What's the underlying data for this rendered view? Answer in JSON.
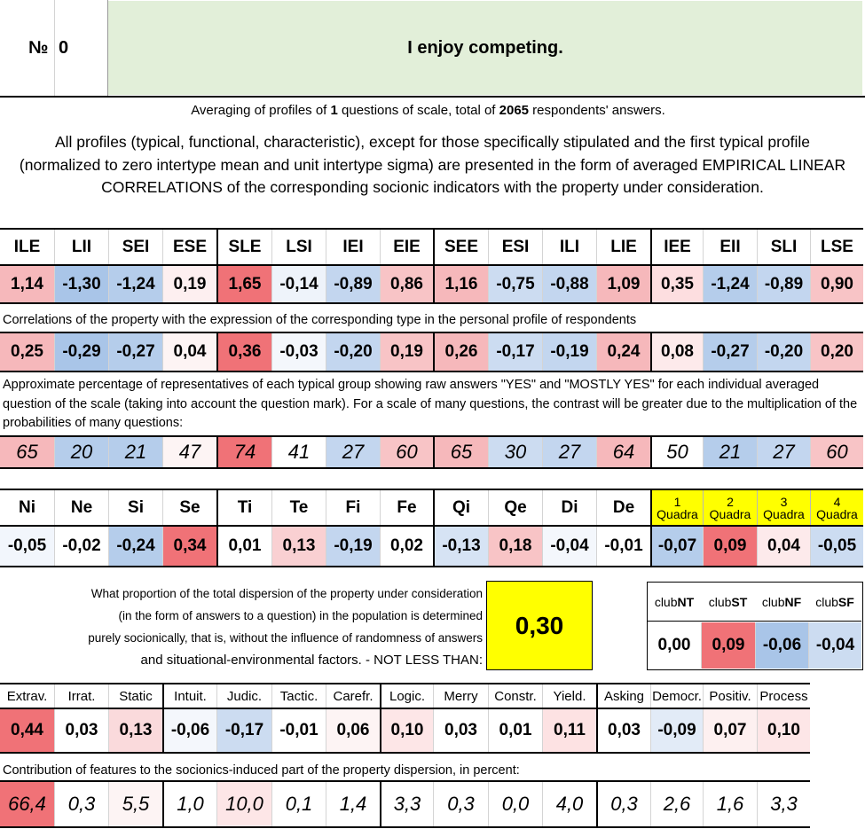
{
  "header": {
    "number_label": "№",
    "number": "0",
    "question": "I enjoy competing."
  },
  "summary": {
    "prefix": "Averaging of profiles of ",
    "questions": "1",
    "middle": " questions of scale, total of ",
    "respondents": "2065",
    "suffix": " respondents' answers.",
    "description": "All profiles (typical, functional, characteristic), except for those specifically stipulated and the first typical profile (normalized to zero intertype mean and unit intertype sigma) are presented in the form of averaged EMPIRICAL LINEAR CORRELATIONS of the corresponding socionic indicators with the property under consideration."
  },
  "types": {
    "labels": [
      "ILE",
      "LII",
      "SEI",
      "ESE",
      "SLE",
      "LSI",
      "IEI",
      "EIE",
      "SEE",
      "ESI",
      "ILI",
      "LIE",
      "IEE",
      "EII",
      "SLI",
      "LSE"
    ],
    "profile": [
      "1,14",
      "-1,30",
      "-1,24",
      "0,19",
      "1,65",
      "-0,14",
      "-0,89",
      "0,86",
      "1,16",
      "-0,75",
      "-0,88",
      "1,09",
      "0,35",
      "-1,24",
      "-0,89",
      "0,90"
    ],
    "profile_colors": [
      "#f6b8bb",
      "#a9c5e8",
      "#b5cdeb",
      "#fdeff0",
      "#f07277",
      "#eef3fa",
      "#c3d6ef",
      "#f8c4c6",
      "#f6b8bb",
      "#ccdcf1",
      "#c3d6ef",
      "#f6b8bb",
      "#fddee0",
      "#b5cdeb",
      "#c3d6ef",
      "#f8c4c6"
    ],
    "corr_caption": "Correlations of the property with the expression of the corresponding type in the personal profile of respondents",
    "correlations": [
      "0,25",
      "-0,29",
      "-0,27",
      "0,04",
      "0,36",
      "-0,03",
      "-0,20",
      "0,19",
      "0,26",
      "-0,17",
      "-0,19",
      "0,24",
      "0,08",
      "-0,27",
      "-0,20",
      "0,20"
    ],
    "corr_colors": [
      "#f6b8bb",
      "#a9c5e8",
      "#b5cdeb",
      "#fdf4f4",
      "#f07277",
      "#f4f7fc",
      "#c3d6ef",
      "#f8c4c6",
      "#f6b8bb",
      "#ccdcf1",
      "#c3d6ef",
      "#f6b8bb",
      "#fdeaeb",
      "#b5cdeb",
      "#c3d6ef",
      "#f8c4c6"
    ],
    "pct_caption": "Approximate percentage of representatives of each typical group showing raw answers \"YES\" and \"MOSTLY YES\" for each individual averaged question of the scale (taking into account the question mark). For a scale of many questions, the contrast will be greater due to the multiplication of the probabilities of many questions:",
    "percentages": [
      "65",
      "20",
      "21",
      "47",
      "74",
      "41",
      "27",
      "60",
      "65",
      "30",
      "27",
      "64",
      "50",
      "21",
      "27",
      "60"
    ],
    "pct_colors": [
      "#f6b8bb",
      "#b5cdeb",
      "#b5cdeb",
      "#fdf4f4",
      "#f07277",
      "#ffffff",
      "#c3d6ef",
      "#f8c4c6",
      "#f6b8bb",
      "#ccdcf1",
      "#c3d6ef",
      "#f6b8bb",
      "#ffffff",
      "#b5cdeb",
      "#c3d6ef",
      "#f8c4c6"
    ]
  },
  "functions": {
    "labels": [
      "Ni",
      "Ne",
      "Si",
      "Se",
      "Ti",
      "Te",
      "Fi",
      "Fe",
      "Qi",
      "Qe",
      "Di",
      "De"
    ],
    "values": [
      "-0,05",
      "-0,02",
      "-0,24",
      "0,34",
      "0,01",
      "0,13",
      "-0,19",
      "0,02",
      "-0,13",
      "0,18",
      "-0,04",
      "-0,01"
    ],
    "colors": [
      "#f2f6fc",
      "#ffffff",
      "#b5cdeb",
      "#f07277",
      "#ffffff",
      "#f9d0d2",
      "#c3d6ef",
      "#ffffff",
      "#d6e3f4",
      "#f8c4c6",
      "#f4f7fc",
      "#ffffff"
    ]
  },
  "quadras": {
    "numbers": [
      "1",
      "2",
      "3",
      "4"
    ],
    "word": "Quadra",
    "values": [
      "-0,07",
      "0,09",
      "0,04",
      "-0,05"
    ],
    "colors": [
      "#b5cdeb",
      "#f07277",
      "#fdeaeb",
      "#ccdcf1"
    ],
    "header_color": "#ffff00"
  },
  "dispersion": {
    "lines": [
      "What proportion of the total dispersion of the property under consideration",
      "(in the form of answers to a question) in the population is determined",
      "purely socionically, that is, without the influence of randomness of answers",
      "and situational-environmental factors. - NOT LESS THAN:"
    ],
    "value": "0,30",
    "box_color": "#ffff00"
  },
  "clubs": {
    "prefix": "club",
    "names": [
      "NT",
      "ST",
      "NF",
      "SF"
    ],
    "values": [
      "0,00",
      "0,09",
      "-0,06",
      "-0,04"
    ],
    "colors": [
      "#ffffff",
      "#f07277",
      "#a9c5e8",
      "#ccdcf1"
    ]
  },
  "features": {
    "labels": [
      "Extrav.",
      "Irrat.",
      "Static",
      "Intuit.",
      "Judic.",
      "Tactic.",
      "Carefr.",
      "Logic.",
      "Merry",
      "Constr.",
      "Yield.",
      "Asking",
      "Democr.",
      "Positiv.",
      "Process"
    ],
    "values": [
      "0,44",
      "0,03",
      "0,13",
      "-0,06",
      "-0,17",
      "-0,01",
      "0,06",
      "0,10",
      "0,03",
      "0,01",
      "0,11",
      "0,03",
      "-0,09",
      "0,07",
      "0,10"
    ],
    "colors": [
      "#f07277",
      "#ffffff",
      "#fadadc",
      "#f4f7fc",
      "#ccdcf1",
      "#ffffff",
      "#fdf4f4",
      "#fde6e7",
      "#ffffff",
      "#ffffff",
      "#fde2e3",
      "#ffffff",
      "#e2ebf7",
      "#fdf0f0",
      "#fde6e7"
    ],
    "contrib_caption": "Contribution of features to the sociоnics-induced part of the property dispersion, in percent:",
    "contributions": [
      "66,4",
      "0,3",
      "5,5",
      "1,0",
      "10,0",
      "0,1",
      "1,4",
      "3,3",
      "0,3",
      "0,0",
      "4,0",
      "0,3",
      "2,6",
      "1,6",
      "3,3"
    ],
    "contrib_colors": [
      "#f07277",
      "#ffffff",
      "#fdf4f4",
      "#ffffff",
      "#fde6e7",
      "#ffffff",
      "#ffffff",
      "#ffffff",
      "#ffffff",
      "#ffffff",
      "#ffffff",
      "#ffffff",
      "#ffffff",
      "#ffffff",
      "#ffffff"
    ]
  }
}
